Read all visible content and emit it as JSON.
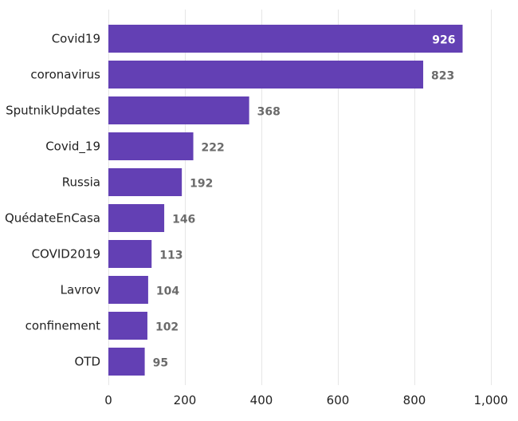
{
  "chart_data": {
    "type": "bar",
    "orientation": "horizontal",
    "title": "",
    "xlabel": "",
    "ylabel": "",
    "categories": [
      "Covid19",
      "coronavirus",
      "SputnikUpdates",
      "Covid_19",
      "Russia",
      "QuédateEnCasa",
      "COVID2019",
      "Lavrov",
      "confinement",
      "OTD"
    ],
    "values": [
      926,
      823,
      368,
      222,
      192,
      146,
      113,
      104,
      102,
      95
    ],
    "value_labels": [
      "926",
      "823",
      "368",
      "222",
      "192",
      "146",
      "113",
      "104",
      "102",
      "95"
    ],
    "xlim": [
      0,
      1000
    ],
    "xticks": [
      0,
      200,
      400,
      600,
      800,
      1000
    ],
    "xtick_labels": [
      "0",
      "200",
      "400",
      "600",
      "800",
      "1,000"
    ],
    "grid": true,
    "legend": "none",
    "bar_color": "#6340b4"
  }
}
